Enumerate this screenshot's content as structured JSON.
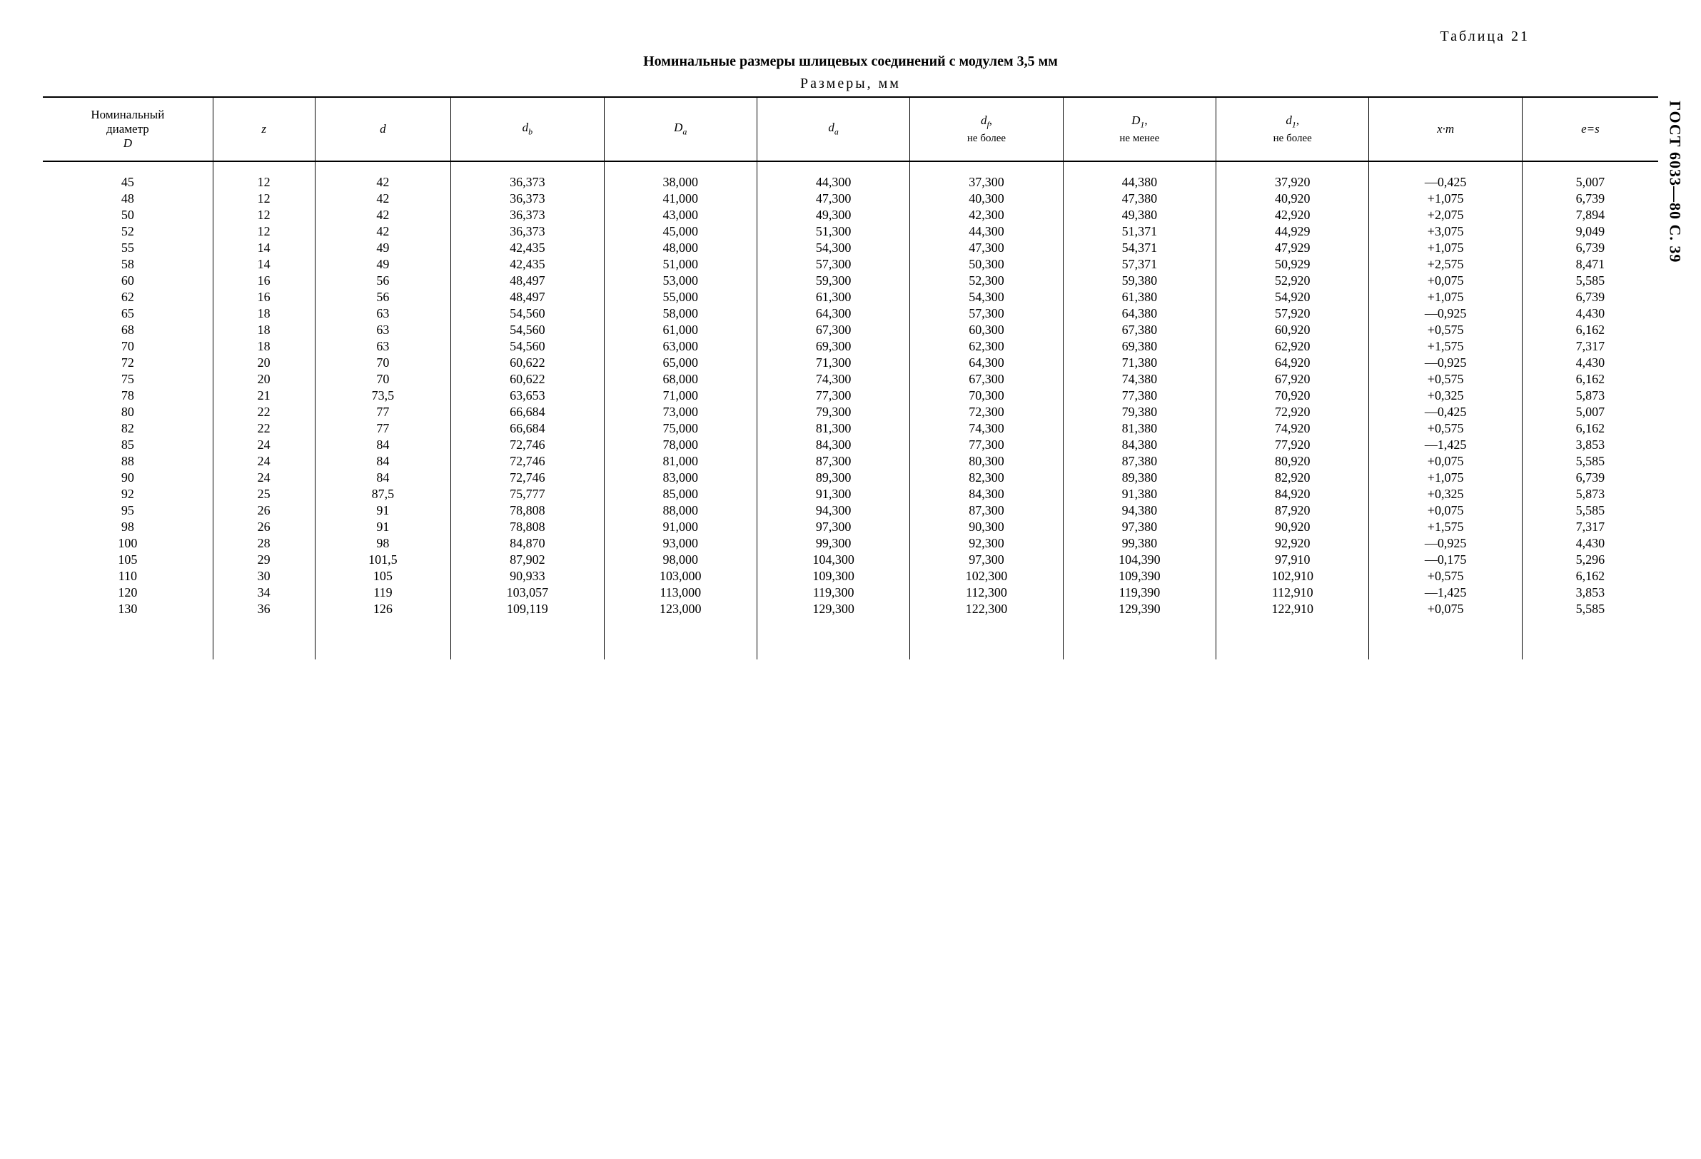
{
  "doc": {
    "table_label": "Таблица 21",
    "title": "Номинальные размеры шлицевых соединений с модулем 3,5 мм",
    "subtitle": "Размеры, мм",
    "side_label": "ГОСТ 6033—80 С. 39"
  },
  "table": {
    "type": "table",
    "background_color": "#ffffff",
    "border_color": "#000000",
    "text_color": "#000000",
    "font_family": "Times New Roman",
    "header_fontsize": 17,
    "body_fontsize": 18,
    "col_widths_pct": [
      10,
      6,
      8,
      9,
      9,
      9,
      9,
      9,
      9,
      9,
      8
    ],
    "columns": [
      {
        "key": "D_nom",
        "label_pre": "Номинальный",
        "label_mid": "диаметр",
        "label_sym": "D",
        "italic_sym": true
      },
      {
        "key": "z",
        "label": "z",
        "italic": true
      },
      {
        "key": "d",
        "label": "d",
        "italic": true
      },
      {
        "key": "d_b",
        "base": "d",
        "sub": "b",
        "italic": true
      },
      {
        "key": "D_a",
        "base": "D",
        "sub": "a",
        "italic": true
      },
      {
        "key": "d_a",
        "base": "d",
        "sub": "a",
        "italic": true
      },
      {
        "key": "d_f",
        "base": "d",
        "sub": "f",
        "italic": true,
        "suffix_line": "не более"
      },
      {
        "key": "D_1",
        "base": "D",
        "sub": "1",
        "italic": true,
        "suffix_line": "не менее"
      },
      {
        "key": "d_1",
        "base": "d",
        "sub": "1",
        "italic": true,
        "suffix_line": "не более"
      },
      {
        "key": "xm",
        "label": "x·m",
        "italic": true
      },
      {
        "key": "es",
        "label": "e=s",
        "italic": true
      }
    ],
    "rows": [
      [
        "45",
        "12",
        "42",
        "36,373",
        "38,000",
        "44,300",
        "37,300",
        "44,380",
        "37,920",
        "—0,425",
        "5,007"
      ],
      [
        "48",
        "12",
        "42",
        "36,373",
        "41,000",
        "47,300",
        "40,300",
        "47,380",
        "40,920",
        "+1,075",
        "6,739"
      ],
      [
        "50",
        "12",
        "42",
        "36,373",
        "43,000",
        "49,300",
        "42,300",
        "49,380",
        "42,920",
        "+2,075",
        "7,894"
      ],
      [
        "52",
        "12",
        "42",
        "36,373",
        "45,000",
        "51,300",
        "44,300",
        "51,371",
        "44,929",
        "+3,075",
        "9,049"
      ],
      [
        "55",
        "14",
        "49",
        "42,435",
        "48,000",
        "54,300",
        "47,300",
        "54,371",
        "47,929",
        "+1,075",
        "6,739"
      ],
      [
        "58",
        "14",
        "49",
        "42,435",
        "51,000",
        "57,300",
        "50,300",
        "57,371",
        "50,929",
        "+2,575",
        "8,471"
      ],
      [
        "60",
        "16",
        "56",
        "48,497",
        "53,000",
        "59,300",
        "52,300",
        "59,380",
        "52,920",
        "+0,075",
        "5,585"
      ],
      [
        "62",
        "16",
        "56",
        "48,497",
        "55,000",
        "61,300",
        "54,300",
        "61,380",
        "54,920",
        "+1,075",
        "6,739"
      ],
      [
        "65",
        "18",
        "63",
        "54,560",
        "58,000",
        "64,300",
        "57,300",
        "64,380",
        "57,920",
        "—0,925",
        "4,430"
      ],
      [
        "68",
        "18",
        "63",
        "54,560",
        "61,000",
        "67,300",
        "60,300",
        "67,380",
        "60,920",
        "+0,575",
        "6,162"
      ],
      [
        "70",
        "18",
        "63",
        "54,560",
        "63,000",
        "69,300",
        "62,300",
        "69,380",
        "62,920",
        "+1,575",
        "7,317"
      ],
      [
        "72",
        "20",
        "70",
        "60,622",
        "65,000",
        "71,300",
        "64,300",
        "71,380",
        "64,920",
        "—0,925",
        "4,430"
      ],
      [
        "75",
        "20",
        "70",
        "60,622",
        "68,000",
        "74,300",
        "67,300",
        "74,380",
        "67,920",
        "+0,575",
        "6,162"
      ],
      [
        "78",
        "21",
        "73,5",
        "63,653",
        "71,000",
        "77,300",
        "70,300",
        "77,380",
        "70,920",
        "+0,325",
        "5,873"
      ],
      [
        "80",
        "22",
        "77",
        "66,684",
        "73,000",
        "79,300",
        "72,300",
        "79,380",
        "72,920",
        "—0,425",
        "5,007"
      ],
      [
        "82",
        "22",
        "77",
        "66,684",
        "75,000",
        "81,300",
        "74,300",
        "81,380",
        "74,920",
        "+0,575",
        "6,162"
      ],
      [
        "85",
        "24",
        "84",
        "72,746",
        "78,000",
        "84,300",
        "77,300",
        "84,380",
        "77,920",
        "—1,425",
        "3,853"
      ],
      [
        "88",
        "24",
        "84",
        "72,746",
        "81,000",
        "87,300",
        "80,300",
        "87,380",
        "80,920",
        "+0,075",
        "5,585"
      ],
      [
        "90",
        "24",
        "84",
        "72,746",
        "83,000",
        "89,300",
        "82,300",
        "89,380",
        "82,920",
        "+1,075",
        "6,739"
      ],
      [
        "92",
        "25",
        "87,5",
        "75,777",
        "85,000",
        "91,300",
        "84,300",
        "91,380",
        "84,920",
        "+0,325",
        "5,873"
      ],
      [
        "95",
        "26",
        "91",
        "78,808",
        "88,000",
        "94,300",
        "87,300",
        "94,380",
        "87,920",
        "+0,075",
        "5,585"
      ],
      [
        "98",
        "26",
        "91",
        "78,808",
        "91,000",
        "97,300",
        "90,300",
        "97,380",
        "90,920",
        "+1,575",
        "7,317"
      ],
      [
        "100",
        "28",
        "98",
        "84,870",
        "93,000",
        "99,300",
        "92,300",
        "99,380",
        "92,920",
        "—0,925",
        "4,430"
      ],
      [
        "105",
        "29",
        "101,5",
        "87,902",
        "98,000",
        "104,300",
        "97,300",
        "104,390",
        "97,910",
        "—0,175",
        "5,296"
      ],
      [
        "110",
        "30",
        "105",
        "90,933",
        "103,000",
        "109,300",
        "102,300",
        "109,390",
        "102,910",
        "+0,575",
        "6,162"
      ],
      [
        "120",
        "34",
        "119",
        "103,057",
        "113,000",
        "119,300",
        "112,300",
        "119,390",
        "112,910",
        "—1,425",
        "3,853"
      ],
      [
        "130",
        "36",
        "126",
        "109,119",
        "123,000",
        "129,300",
        "122,300",
        "129,390",
        "122,910",
        "+0,075",
        "5,585"
      ]
    ]
  }
}
